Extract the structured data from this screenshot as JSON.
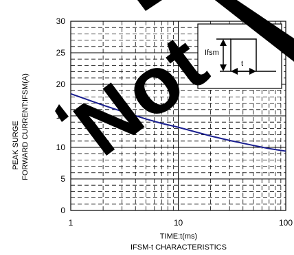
{
  "chart_data": {
    "type": "line",
    "title": "IFSM-t CHARACTERISTICS",
    "xlabel": "TIME:t(ms)",
    "ylabel_lines": [
      "PEAK SURGE",
      "FORWARD CURRENT:IFSM(A)"
    ],
    "x_scale": "log",
    "xlim": [
      1,
      100
    ],
    "ylim": [
      0,
      30
    ],
    "x_ticks": [
      "1",
      "10",
      "100"
    ],
    "y_ticks": [
      "0",
      "5",
      "10",
      "15",
      "20",
      "25",
      "30"
    ],
    "grid": true,
    "series": [
      {
        "color": "#1a1f8f",
        "x": [
          1,
          2,
          3,
          5,
          7,
          10,
          20,
          30,
          50,
          70,
          100
        ],
        "y": [
          18.5,
          16.7,
          15.7,
          14.5,
          13.8,
          13.2,
          11.8,
          11.1,
          10.3,
          9.8,
          9.4
        ]
      }
    ],
    "inset": {
      "label_ifsm": "Ifsm",
      "label_t": "t"
    }
  },
  "watermark": "Not Recommended",
  "colors": {
    "curve": "#1a1f8f",
    "watermark": "#000000"
  }
}
